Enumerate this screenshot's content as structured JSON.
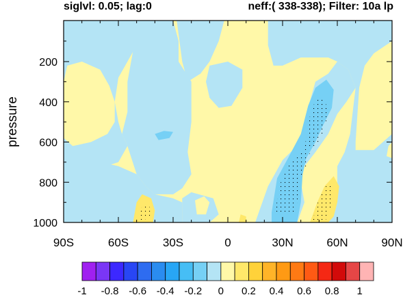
{
  "header": {
    "left": "siglvl: 0.05; lag:0",
    "right": "neff:( 338-338); Filter: 10a lp"
  },
  "chart_data": {
    "type": "heatmap",
    "title": "",
    "xlabel": "",
    "ylabel": "pressure",
    "x_ticks": [
      "90S",
      "60S",
      "30S",
      "0",
      "30N",
      "60N",
      "90N"
    ],
    "x_tick_values": [
      -90,
      -60,
      -30,
      0,
      30,
      60,
      90
    ],
    "y_ticks": [
      "200",
      "400",
      "600",
      "800",
      "1000"
    ],
    "y_tick_values": [
      200,
      400,
      600,
      800,
      1000
    ],
    "xlim": [
      -90,
      90
    ],
    "ylim": [
      1000,
      0
    ],
    "colorbar": {
      "levels": [
        -1,
        -0.9,
        -0.8,
        -0.7,
        -0.6,
        -0.5,
        -0.4,
        -0.3,
        -0.2,
        -0.1,
        0,
        0.1,
        0.2,
        0.3,
        0.4,
        0.5,
        0.6,
        0.7,
        0.8,
        0.9,
        1
      ],
      "labels": [
        "-1",
        "-0.8",
        "-0.6",
        "-0.4",
        "-0.2",
        "0",
        "0.2",
        "0.4",
        "0.6",
        "0.8",
        "1"
      ],
      "colors": [
        "#a020f0",
        "#7a36f6",
        "#3c28ff",
        "#2846f5",
        "#2e6cf0",
        "#2a8cf0",
        "#28a6f5",
        "#46bef5",
        "#76d0f5",
        "#b4e4f5",
        "#fff8a8",
        "#ffe86a",
        "#ffd23a",
        "#ffb428",
        "#ff9a14",
        "#ff7a14",
        "#ff5a14",
        "#f52814",
        "#d20a0a",
        "#e64646",
        "#ffb4b4"
      ]
    },
    "field_palette": {
      "negative": "#b4e4f5",
      "positive": "#fff8a8",
      "neg_mid": "#76d0f5",
      "pos_mid": "#ffe86a"
    },
    "regions": [
      {
        "sign": "negative",
        "level": -0.1,
        "lat_range": [
          -90,
          -60
        ],
        "p_range": [
          0,
          1000
        ],
        "desc": "SH high-lat belt"
      },
      {
        "sign": "negative",
        "level": -0.1,
        "lat_range": [
          -60,
          -20
        ],
        "p_range": [
          0,
          1000
        ],
        "desc": "SH mid-lat column"
      },
      {
        "sign": "negative",
        "level": -0.1,
        "lat_range": [
          18,
          90
        ],
        "p_range": [
          0,
          1000
        ],
        "desc": "NH broad region"
      },
      {
        "sign": "negative",
        "level": -0.2,
        "lat_range": [
          24,
          50
        ],
        "p_range": [
          300,
          1000
        ],
        "desc": "NH significant tongue"
      },
      {
        "sign": "positive",
        "level": 0.1,
        "lat_range": [
          -85,
          -60
        ],
        "p_range": [
          200,
          650
        ],
        "desc": "SH high-lat"
      },
      {
        "sign": "positive",
        "level": 0.1,
        "lat_range": [
          -20,
          25
        ],
        "p_range": [
          0,
          1000
        ],
        "desc": "tropical column"
      },
      {
        "sign": "positive",
        "level": 0.2,
        "lat_range": [
          -52,
          -41
        ],
        "p_range": [
          870,
          1000
        ],
        "desc": "SH low-level"
      },
      {
        "sign": "positive",
        "level": 0.2,
        "lat_range": [
          45,
          60
        ],
        "p_range": [
          800,
          1000
        ],
        "desc": "NH low-level"
      },
      {
        "sign": "positive",
        "level": 0.1,
        "lat_range": [
          55,
          88
        ],
        "p_range": [
          700,
          1000
        ],
        "desc": "NH high-lat low-level"
      }
    ],
    "significance_stippling": [
      {
        "lat_range": [
          40,
          55
        ],
        "p_range": [
          380,
          650
        ]
      },
      {
        "lat_range": [
          26,
          44
        ],
        "p_range": [
          640,
          960
        ]
      },
      {
        "lat_range": [
          45,
          58
        ],
        "p_range": [
          780,
          1000
        ]
      },
      {
        "lat_range": [
          -50,
          -42
        ],
        "p_range": [
          910,
          990
        ]
      }
    ]
  }
}
